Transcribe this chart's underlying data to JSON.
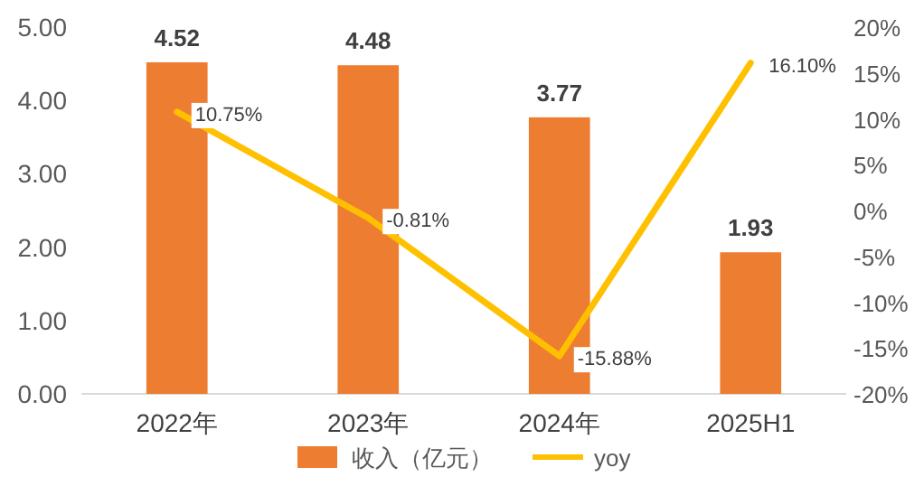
{
  "chart_data": {
    "type": "bar",
    "categories": [
      "2022年",
      "2023年",
      "2024年",
      "2025H1"
    ],
    "series": [
      {
        "name": "收入（亿元）",
        "color": "#ed7d31",
        "values": [
          4.52,
          4.48,
          3.77,
          1.93
        ],
        "value_labels": [
          "4.52",
          "4.48",
          "3.77",
          "1.93"
        ]
      },
      {
        "name": "yoy",
        "type": "line",
        "axis": "y2",
        "color": "#ffc000",
        "values": [
          10.75,
          -0.81,
          -15.88,
          16.1
        ],
        "value_labels": [
          "10.75%",
          "-0.81%",
          "-15.88%",
          "16.10%"
        ]
      }
    ],
    "ylim": [
      0,
      5
    ],
    "yticks": [
      {
        "value": 0,
        "label": "0.00"
      },
      {
        "value": 1,
        "label": "1.00"
      },
      {
        "value": 2,
        "label": "2.00"
      },
      {
        "value": 3,
        "label": "3.00"
      },
      {
        "value": 4,
        "label": "4.00"
      },
      {
        "value": 5,
        "label": "5.00"
      }
    ],
    "y2lim": [
      -20,
      20
    ],
    "y2ticks": [
      {
        "value": -20,
        "label": "-20%"
      },
      {
        "value": -15,
        "label": "-15%"
      },
      {
        "value": -10,
        "label": "-10%"
      },
      {
        "value": -5,
        "label": "-5%"
      },
      {
        "value": 0,
        "label": "0%"
      },
      {
        "value": 5,
        "label": "5%"
      },
      {
        "value": 10,
        "label": "10%"
      },
      {
        "value": 15,
        "label": "15%"
      },
      {
        "value": 20,
        "label": "20%"
      }
    ],
    "legend": "bottom",
    "grid": false
  }
}
